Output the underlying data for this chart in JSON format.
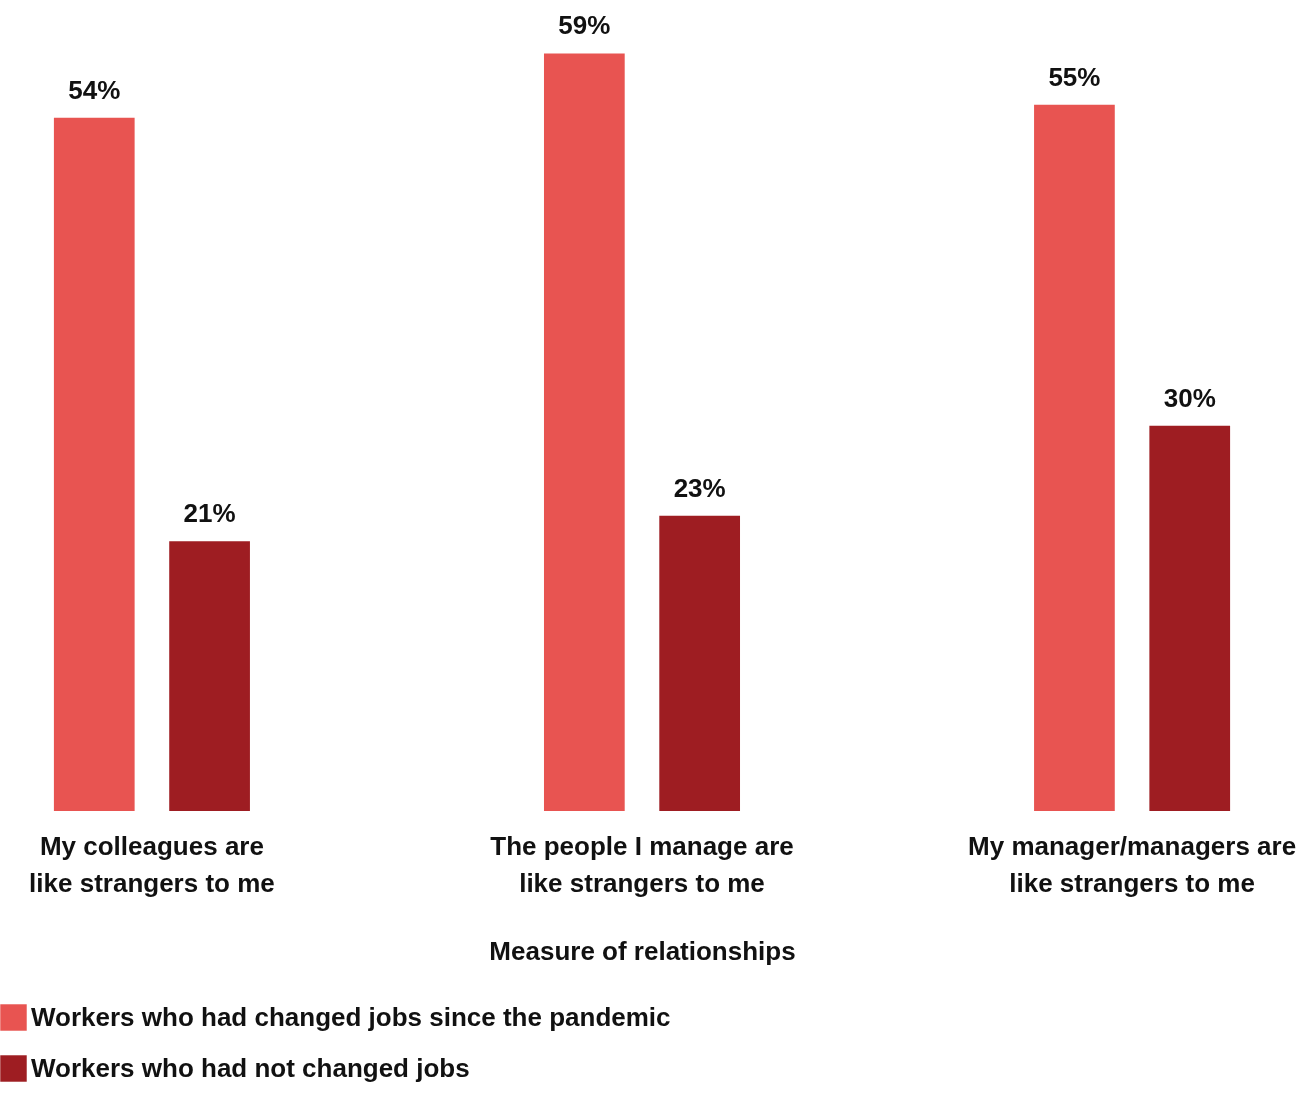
{
  "chart_data": {
    "type": "bar",
    "xlabel": "Measure of relationships",
    "categories": [
      "My colleagues are like strangers to me",
      "The people I manage are like strangers to me",
      "My manager/managers are like strangers to me"
    ],
    "series": [
      {
        "name": "Workers who had changed jobs since the pandemic",
        "color": "#e85451",
        "values": [
          54,
          59,
          55
        ],
        "value_labels": [
          "54%",
          "59%",
          "55%"
        ]
      },
      {
        "name": "Workers who had not changed jobs",
        "color": "#9e1d22",
        "values": [
          21,
          23,
          30
        ],
        "value_labels": [
          "21%",
          "23%",
          "30%"
        ]
      }
    ],
    "legend": "bottom",
    "tick_labels": "x"
  }
}
